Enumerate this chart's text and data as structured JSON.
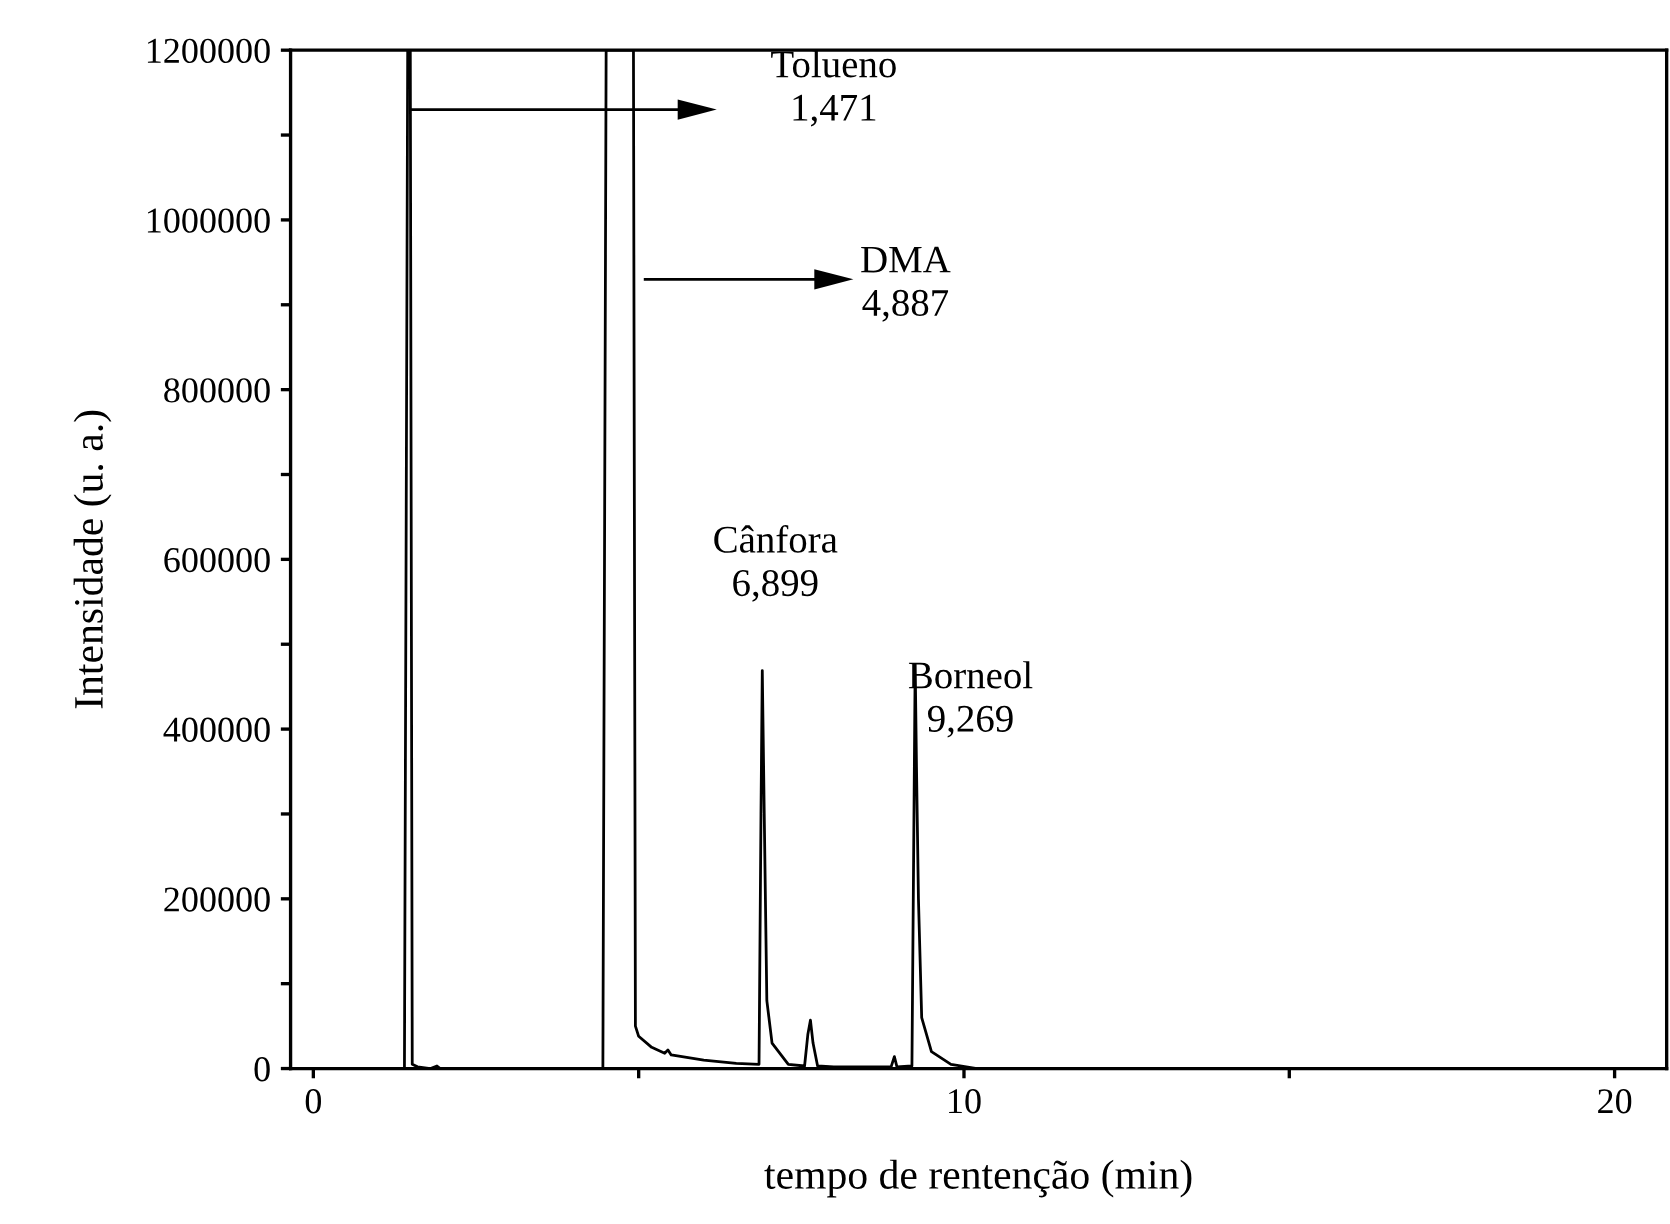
{
  "chart_data": {
    "type": "line",
    "xlabel": "tempo de rentenção (min)",
    "ylabel": "Intensidade (u. a.)",
    "series": [
      {
        "color": "#000000",
        "x": [
          0,
          1.4,
          1.45,
          1.49,
          1.52,
          1.6,
          1.8,
          1.9,
          1.95,
          4.45,
          4.5,
          4.92,
          4.95,
          5.0,
          5.2,
          5.4,
          5.45,
          5.5,
          6.0,
          6.5,
          6.85,
          6.88,
          6.9,
          6.93,
          6.97,
          7.05,
          7.3,
          7.55,
          7.6,
          7.64,
          7.68,
          7.75,
          8.0,
          8.88,
          8.93,
          8.97,
          9.2,
          9.25,
          9.27,
          9.3,
          9.35,
          9.5,
          9.8,
          10.2,
          20.8
        ],
        "values": [
          0,
          0,
          1200000,
          1200000,
          5000,
          2000,
          0,
          3000,
          0,
          0,
          1200000,
          1200000,
          50000,
          38000,
          25000,
          18000,
          22000,
          16000,
          10000,
          6000,
          5000,
          300000,
          469000,
          300000,
          80000,
          30000,
          5000,
          3000,
          40000,
          57000,
          30000,
          3000,
          2000,
          2000,
          14000,
          2000,
          3000,
          476000,
          356000,
          200000,
          60000,
          20000,
          5000,
          0,
          0
        ]
      }
    ],
    "xlim": [
      -0.35,
      20.8
    ],
    "ylim": [
      0,
      1200000
    ],
    "xticks": [
      0,
      {
        "value": 5,
        "label": null
      },
      10,
      {
        "value": 15,
        "label": null
      },
      20
    ],
    "yticks": [
      0,
      {
        "value": 100000,
        "label": null
      },
      200000,
      {
        "value": 300000,
        "label": null
      },
      400000,
      {
        "value": 500000,
        "label": null
      },
      600000,
      {
        "value": 700000,
        "label": null
      },
      800000,
      {
        "value": 900000,
        "label": null
      },
      1000000,
      {
        "value": 1100000,
        "label": null
      },
      1200000
    ],
    "annotations": [
      "Tolueno\n1,471",
      "DMA\n4,887",
      "Cânfora\n6,899",
      "Borneol\n9,269"
    ],
    "grid": false,
    "legend": false,
    "marker": "none",
    "line_style": "solid"
  }
}
